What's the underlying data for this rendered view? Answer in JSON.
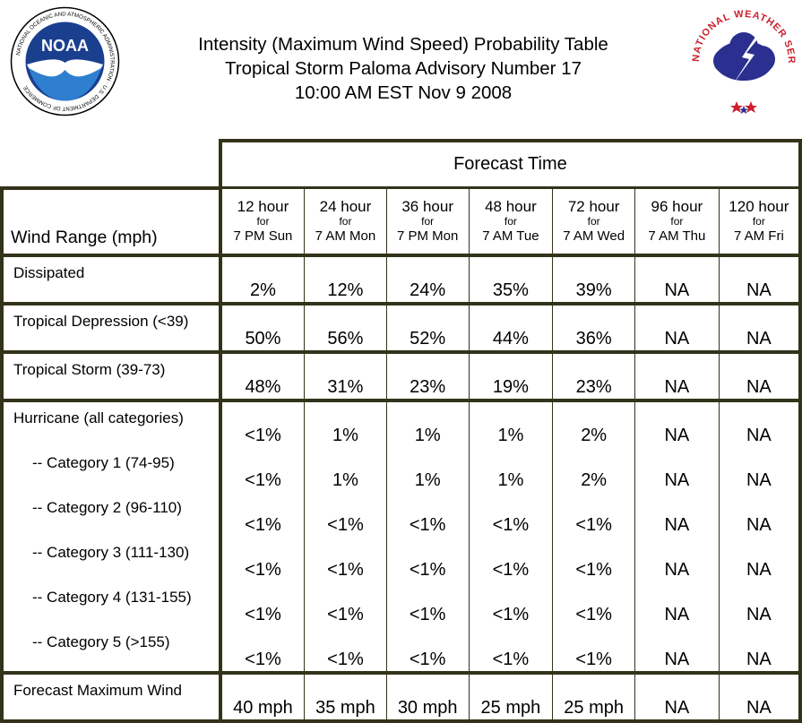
{
  "header": {
    "title_line1": "Intensity (Maximum Wind Speed) Probability Table",
    "title_line2": "Tropical Storm Paloma Advisory Number 17",
    "title_line3": "10:00 AM EST Nov 9 2008"
  },
  "logos": {
    "noaa_text": "NOAA",
    "noaa_ring": "NATIONAL OCEANIC AND ATMOSPHERIC ADMINISTRATION · U.S. DEPARTMENT OF COMMERCE",
    "nws_ring": "NATIONAL WEATHER SERVICE"
  },
  "table": {
    "forecast_time_label": "Forecast Time",
    "wind_range_label": "Wind Range (mph)",
    "columns": [
      {
        "hours": "12 hour",
        "for": "for",
        "when": "7 PM Sun"
      },
      {
        "hours": "24 hour",
        "for": "for",
        "when": "7 AM Mon"
      },
      {
        "hours": "36 hour",
        "for": "for",
        "when": "7 PM Mon"
      },
      {
        "hours": "48 hour",
        "for": "for",
        "when": "7 AM Tue"
      },
      {
        "hours": "72 hour",
        "for": "for",
        "when": "7 AM Wed"
      },
      {
        "hours": "96 hour",
        "for": "for",
        "when": "7 AM Thu"
      },
      {
        "hours": "120 hour",
        "for": "for",
        "when": "7 AM Fri"
      }
    ],
    "rows": [
      {
        "label": "Dissipated",
        "values": [
          "2%",
          "12%",
          "24%",
          "35%",
          "39%",
          "NA",
          "NA"
        ]
      },
      {
        "label": "Tropical Depression (<39)",
        "values": [
          "50%",
          "56%",
          "52%",
          "44%",
          "36%",
          "NA",
          "NA"
        ]
      },
      {
        "label": "Tropical Storm (39-73)",
        "values": [
          "48%",
          "31%",
          "23%",
          "19%",
          "23%",
          "NA",
          "NA"
        ]
      },
      {
        "label": "Hurricane (all categories)",
        "values": [
          "<1%",
          "1%",
          "1%",
          "1%",
          "2%",
          "NA",
          "NA"
        ]
      },
      {
        "label": "-- Category 1 (74-95)",
        "values": [
          "<1%",
          "1%",
          "1%",
          "1%",
          "2%",
          "NA",
          "NA"
        ]
      },
      {
        "label": "-- Category 2 (96-110)",
        "values": [
          "<1%",
          "<1%",
          "<1%",
          "<1%",
          "<1%",
          "NA",
          "NA"
        ]
      },
      {
        "label": "-- Category 3 (111-130)",
        "values": [
          "<1%",
          "<1%",
          "<1%",
          "<1%",
          "<1%",
          "NA",
          "NA"
        ]
      },
      {
        "label": "-- Category 4 (131-155)",
        "values": [
          "<1%",
          "<1%",
          "<1%",
          "<1%",
          "<1%",
          "NA",
          "NA"
        ]
      },
      {
        "label": "-- Category 5 (>155)",
        "values": [
          "<1%",
          "<1%",
          "<1%",
          "<1%",
          "<1%",
          "NA",
          "NA"
        ]
      },
      {
        "label": "Forecast Maximum Wind",
        "values": [
          "40 mph",
          "35 mph",
          "30 mph",
          "25 mph",
          "25 mph",
          "NA",
          "NA"
        ]
      }
    ]
  },
  "colors": {
    "border": "#33331a",
    "noaa_blue": "#1a3f8f",
    "nws_red": "#cc1f2e",
    "nws_cloud": "#2b2f8f"
  }
}
